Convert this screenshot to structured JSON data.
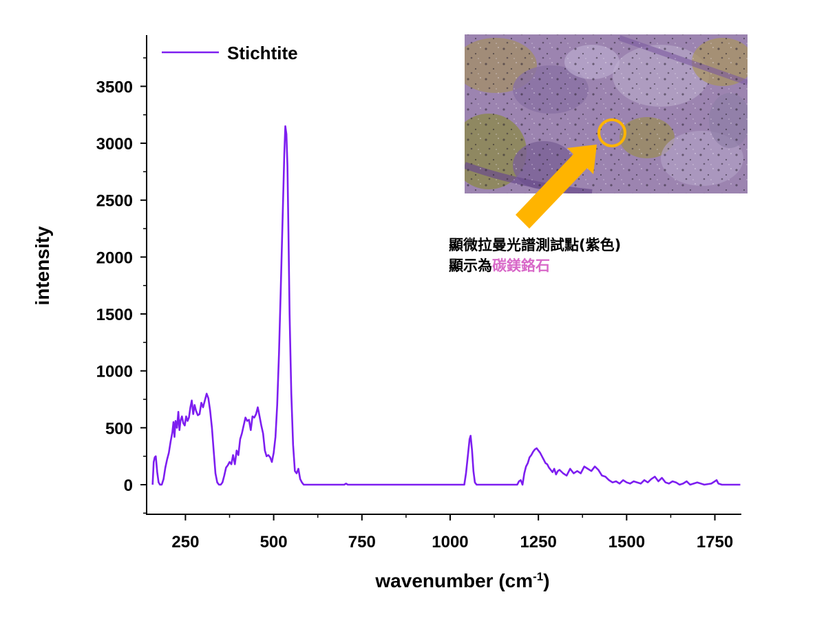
{
  "chart_data": {
    "type": "line",
    "title": "",
    "xlabel": "wavenumber (cm",
    "xlabel_sup": "-1",
    "xlabel_close": ")",
    "ylabel": "intensity",
    "xlim": [
      140,
      1825
    ],
    "ylim": [
      -260,
      3950
    ],
    "x_ticks": [
      250,
      500,
      750,
      1000,
      1250,
      1500,
      1750
    ],
    "x_tick_labels": [
      "250",
      "500",
      "750",
      "1000",
      "1250",
      "1500",
      "1750"
    ],
    "y_ticks": [
      0,
      500,
      1000,
      1500,
      2000,
      2500,
      3000,
      3500
    ],
    "y_tick_labels": [
      "0",
      "500",
      "1000",
      "1500",
      "2000",
      "2500",
      "3000",
      "3500"
    ],
    "grid": false,
    "legend_position": "top-left",
    "series": [
      {
        "name": "Stichtite",
        "color": "#7d1ef0",
        "x": [
          157,
          160,
          163,
          166,
          170,
          174,
          178,
          183,
          188,
          193,
          198,
          203,
          208,
          213,
          216,
          219,
          222,
          226,
          230,
          233,
          236,
          240,
          244,
          248,
          252,
          256,
          260,
          264,
          268,
          272,
          276,
          280,
          285,
          290,
          295,
          300,
          305,
          310,
          315,
          320,
          325,
          330,
          335,
          340,
          345,
          350,
          355,
          360,
          365,
          370,
          375,
          380,
          385,
          390,
          395,
          400,
          405,
          410,
          415,
          420,
          425,
          430,
          435,
          440,
          445,
          450,
          455,
          460,
          465,
          470,
          475,
          480,
          485,
          490,
          495,
          500,
          505,
          510,
          515,
          520,
          525,
          530,
          533,
          536,
          539,
          542,
          545,
          550,
          555,
          560,
          565,
          570,
          575,
          580,
          585,
          590,
          600,
          650,
          700,
          705,
          710,
          720,
          800,
          900,
          1000,
          1040,
          1045,
          1050,
          1055,
          1058,
          1062,
          1066,
          1070,
          1075,
          1080,
          1100,
          1150,
          1190,
          1195,
          1200,
          1205,
          1210,
          1215,
          1220,
          1225,
          1230,
          1235,
          1240,
          1245,
          1250,
          1255,
          1260,
          1265,
          1270,
          1275,
          1280,
          1285,
          1290,
          1295,
          1300,
          1305,
          1310,
          1320,
          1330,
          1340,
          1350,
          1360,
          1370,
          1380,
          1390,
          1400,
          1410,
          1420,
          1430,
          1440,
          1450,
          1460,
          1470,
          1480,
          1490,
          1500,
          1510,
          1520,
          1530,
          1540,
          1550,
          1560,
          1570,
          1580,
          1590,
          1600,
          1610,
          1620,
          1630,
          1640,
          1650,
          1660,
          1670,
          1680,
          1700,
          1720,
          1740,
          1750,
          1755,
          1760,
          1770,
          1780,
          1800,
          1822
        ],
        "values": [
          0,
          200,
          240,
          250,
          110,
          20,
          0,
          0,
          50,
          150,
          220,
          280,
          380,
          460,
          550,
          420,
          560,
          500,
          640,
          480,
          560,
          600,
          540,
          520,
          600,
          560,
          590,
          680,
          740,
          620,
          700,
          650,
          610,
          620,
          720,
          680,
          740,
          800,
          760,
          650,
          500,
          300,
          100,
          20,
          0,
          0,
          20,
          80,
          150,
          170,
          200,
          180,
          260,
          180,
          300,
          260,
          400,
          450,
          520,
          590,
          560,
          570,
          480,
          600,
          590,
          620,
          680,
          600,
          520,
          450,
          300,
          250,
          260,
          240,
          200,
          280,
          420,
          700,
          1150,
          1700,
          2300,
          2900,
          3150,
          3080,
          2800,
          2200,
          1500,
          800,
          350,
          120,
          100,
          140,
          50,
          20,
          0,
          0,
          0,
          0,
          0,
          10,
          0,
          0,
          0,
          0,
          0,
          0,
          100,
          250,
          400,
          430,
          300,
          120,
          20,
          0,
          0,
          0,
          0,
          0,
          30,
          40,
          0,
          100,
          160,
          190,
          240,
          260,
          290,
          310,
          320,
          300,
          280,
          250,
          220,
          190,
          180,
          150,
          130,
          110,
          140,
          90,
          120,
          130,
          100,
          80,
          140,
          100,
          120,
          100,
          160,
          140,
          120,
          160,
          130,
          80,
          70,
          40,
          20,
          30,
          10,
          40,
          20,
          10,
          30,
          20,
          10,
          40,
          20,
          50,
          70,
          30,
          60,
          20,
          10,
          30,
          20,
          0,
          10,
          30,
          0,
          20,
          0,
          10,
          30,
          40,
          10,
          0,
          0,
          0,
          0
        ]
      }
    ]
  },
  "inset": {
    "caption_line1": "顯微拉曼光譜測試點(紫色)",
    "caption_line2_prefix": "顯示為",
    "caption_line2_highlight": "碳鎂鉻石",
    "highlight_color": "#d868c8",
    "marker_color": "#ffb400"
  }
}
